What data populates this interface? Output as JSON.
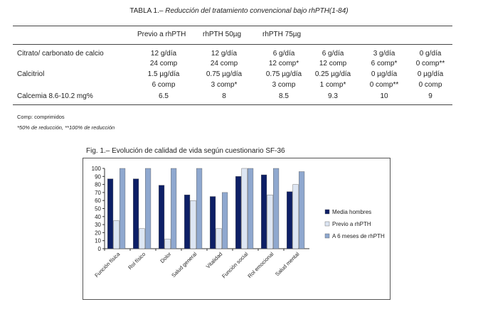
{
  "table": {
    "title_prefix": "TABLA 1.–",
    "title_italic": "Reducción del tratamiento convencional bajo rhPTH(1-84)",
    "headers": [
      "Previo a rhPTH",
      "rhPTH 50µg",
      "rhPTH 75µg"
    ],
    "rows": [
      {
        "label": "Citrato/ carbonato de calcio",
        "line1": [
          "12 g/día",
          "12 g/día",
          "6 g/día",
          "6 g/día",
          "3 g/día",
          "0 g/día"
        ],
        "line2": [
          "24 comp",
          "24 comp",
          "12 comp*",
          "12 comp",
          "6 comp*",
          "0 comp**"
        ]
      },
      {
        "label": "Calcitriol",
        "line1": [
          "1.5 µg/día",
          "0.75 µg/día",
          "0.75 µg/día",
          "0.25 µg/día",
          "0 µg/día",
          "0 µg/día"
        ],
        "line2": [
          "6 comp",
          "3 comp*",
          "3 comp",
          "1 comp*",
          "0 comp**",
          "0 comp"
        ]
      },
      {
        "label": "Calcemia 8.6-10.2 mg%",
        "line1": [
          "6.5",
          "8",
          "8.5",
          "9.3",
          "10",
          "9"
        ]
      }
    ],
    "note1": "Comp: comprimidos",
    "note2": "*50% de reducción, **100% de reducción"
  },
  "figure": {
    "title": "Fig. 1.– Evolución de calidad de vida según cuestionario SF-36"
  },
  "chart_data": {
    "type": "bar",
    "categories": [
      "Función física",
      "Rol físico",
      "Dolor",
      "Salud general",
      "Vitalidad",
      "Función social",
      "Rol emocional",
      "Salud mental"
    ],
    "series": [
      {
        "name": "Media hombres",
        "values": [
          87,
          87,
          79,
          67,
          65,
          90,
          92,
          71
        ],
        "color": "#0d1f66"
      },
      {
        "name": "Previo a rhPTH",
        "values": [
          35,
          25,
          12,
          60,
          25,
          100,
          67,
          80
        ],
        "color": "#dde6f3"
      },
      {
        "name": "A 6 meses de rhPTH",
        "values": [
          100,
          100,
          100,
          100,
          70,
          100,
          100,
          96
        ],
        "color": "#8fa8cf"
      }
    ],
    "yticks": [
      "100",
      "90",
      "80",
      "70",
      "60",
      "50",
      "40",
      "30",
      "20",
      "10",
      "0"
    ],
    "ylim": [
      0,
      100
    ],
    "grid": false,
    "legend_position": "right"
  }
}
